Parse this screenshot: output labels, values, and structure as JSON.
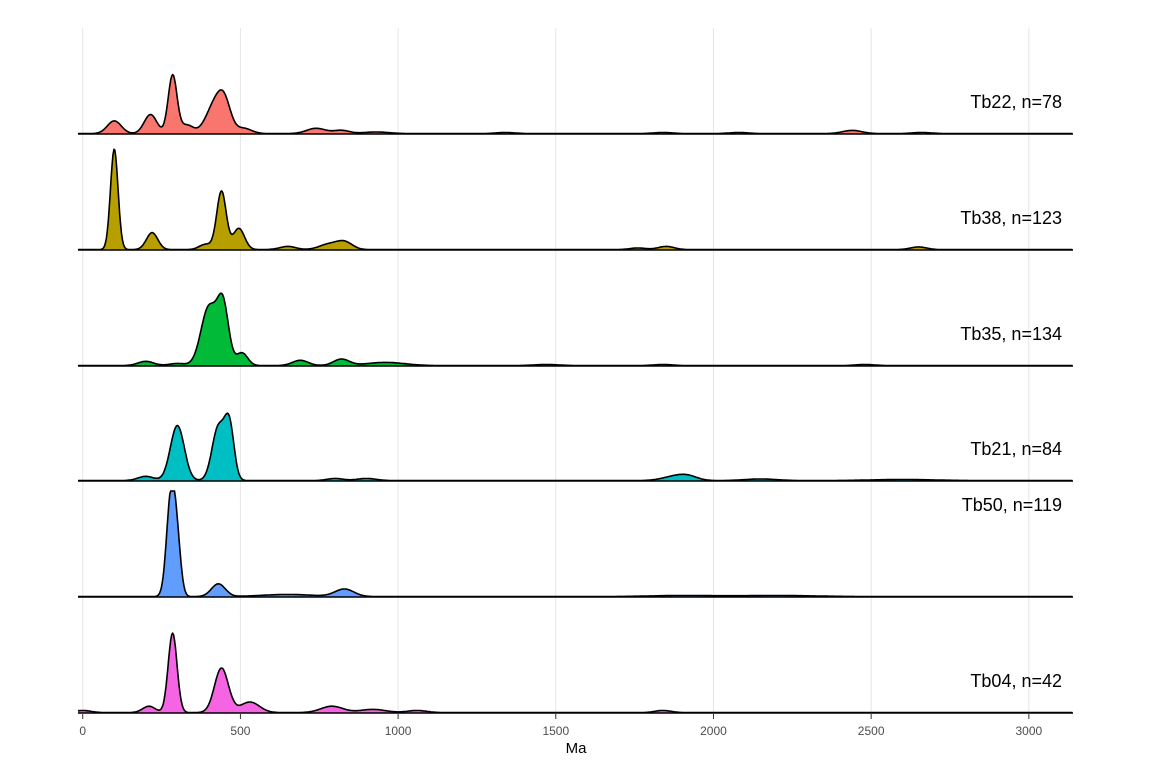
{
  "chart_data": {
    "type": "area",
    "xlabel": "Ma",
    "ylabel": "",
    "xlim": [
      -15,
      3140
    ],
    "x_ticks": [
      0,
      500,
      1000,
      1500,
      2000,
      2500,
      3000
    ],
    "x_tick_labels": [
      "0",
      "500",
      "1000",
      "1500",
      "2000",
      "2500",
      "3000"
    ],
    "grid": "vertical",
    "panels": [
      {
        "label": "Tb22, n=78",
        "color": "#F8766D",
        "peaks": [
          [
            100,
            0.12,
            22
          ],
          [
            215,
            0.18,
            20
          ],
          [
            285,
            0.55,
            14
          ],
          [
            330,
            0.08,
            20
          ],
          [
            420,
            0.28,
            28
          ],
          [
            450,
            0.22,
            20
          ],
          [
            510,
            0.05,
            25
          ],
          [
            740,
            0.05,
            30
          ],
          [
            820,
            0.03,
            25
          ],
          [
            930,
            0.015,
            40
          ],
          [
            1340,
            0.01,
            30
          ],
          [
            1840,
            0.01,
            30
          ],
          [
            2080,
            0.01,
            30
          ],
          [
            2440,
            0.03,
            30
          ],
          [
            2660,
            0.01,
            30
          ]
        ]
      },
      {
        "label": "Tb38, n=123",
        "color": "#B79F00",
        "peaks": [
          [
            100,
            0.95,
            12
          ],
          [
            220,
            0.16,
            18
          ],
          [
            390,
            0.05,
            20
          ],
          [
            440,
            0.55,
            15
          ],
          [
            495,
            0.2,
            18
          ],
          [
            650,
            0.03,
            25
          ],
          [
            780,
            0.05,
            30
          ],
          [
            830,
            0.07,
            25
          ],
          [
            1760,
            0.015,
            25
          ],
          [
            1850,
            0.03,
            25
          ],
          [
            2650,
            0.025,
            25
          ]
        ]
      },
      {
        "label": "Tb35, n=134",
        "color": "#00BA38",
        "peaks": [
          [
            200,
            0.04,
            25
          ],
          [
            300,
            0.02,
            25
          ],
          [
            400,
            0.55,
            25
          ],
          [
            445,
            0.55,
            18
          ],
          [
            505,
            0.12,
            18
          ],
          [
            690,
            0.05,
            25
          ],
          [
            820,
            0.06,
            25
          ],
          [
            960,
            0.03,
            60
          ],
          [
            1470,
            0.01,
            40
          ],
          [
            1840,
            0.01,
            30
          ],
          [
            2480,
            0.01,
            30
          ]
        ]
      },
      {
        "label": "Tb21, n=84",
        "color": "#00BFC4",
        "peaks": [
          [
            200,
            0.04,
            25
          ],
          [
            300,
            0.52,
            22
          ],
          [
            430,
            0.5,
            20
          ],
          [
            465,
            0.5,
            15
          ],
          [
            800,
            0.02,
            25
          ],
          [
            900,
            0.02,
            30
          ],
          [
            1880,
            0.04,
            40
          ],
          [
            1920,
            0.03,
            30
          ],
          [
            2150,
            0.015,
            50
          ],
          [
            2600,
            0.01,
            100
          ]
        ]
      },
      {
        "label": "Tb50, n=119",
        "color": "#619CFF",
        "peaks": [
          [
            280,
            0.95,
            14
          ],
          [
            300,
            0.4,
            12
          ],
          [
            430,
            0.12,
            22
          ],
          [
            650,
            0.02,
            80
          ],
          [
            830,
            0.07,
            30
          ],
          [
            1900,
            0.01,
            100
          ],
          [
            2200,
            0.01,
            120
          ]
        ]
      },
      {
        "label": "Tb04, n=42",
        "color": "#F564E3",
        "peaks": [
          [
            0,
            0.02,
            25
          ],
          [
            210,
            0.06,
            20
          ],
          [
            285,
            0.75,
            14
          ],
          [
            440,
            0.42,
            22
          ],
          [
            530,
            0.1,
            30
          ],
          [
            790,
            0.06,
            35
          ],
          [
            920,
            0.03,
            40
          ],
          [
            1060,
            0.02,
            30
          ],
          [
            1840,
            0.02,
            25
          ]
        ]
      }
    ]
  }
}
